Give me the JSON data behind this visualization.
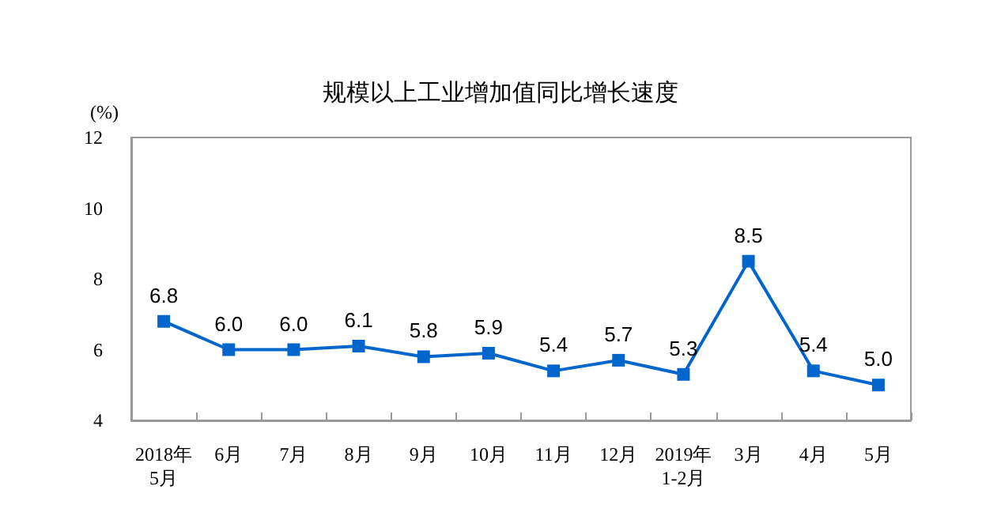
{
  "chart_data": {
    "type": "line",
    "title": "规模以上工业增加值同比增长速度",
    "ylabel": "(%)",
    "categories": [
      "2018年\n5月",
      "6月",
      "7月",
      "8月",
      "9月",
      "10月",
      "11月",
      "12月",
      "2019年\n1-2月",
      "3月",
      "4月",
      "5月"
    ],
    "series": [
      {
        "color": "#0066cc",
        "values": [
          6.8,
          6.0,
          6.0,
          6.1,
          5.8,
          5.9,
          5.4,
          5.7,
          5.3,
          8.5,
          5.4,
          5.0
        ],
        "value_labels": [
          "6.8",
          "6.0",
          "6.0",
          "6.1",
          "5.8",
          "5.9",
          "5.4",
          "5.7",
          "5.3",
          "8.5",
          "5.4",
          "5.0"
        ]
      }
    ],
    "ylim": [
      4,
      12
    ],
    "yticks": [
      4,
      6,
      8,
      10,
      12
    ],
    "marker": "square",
    "grid": false
  }
}
